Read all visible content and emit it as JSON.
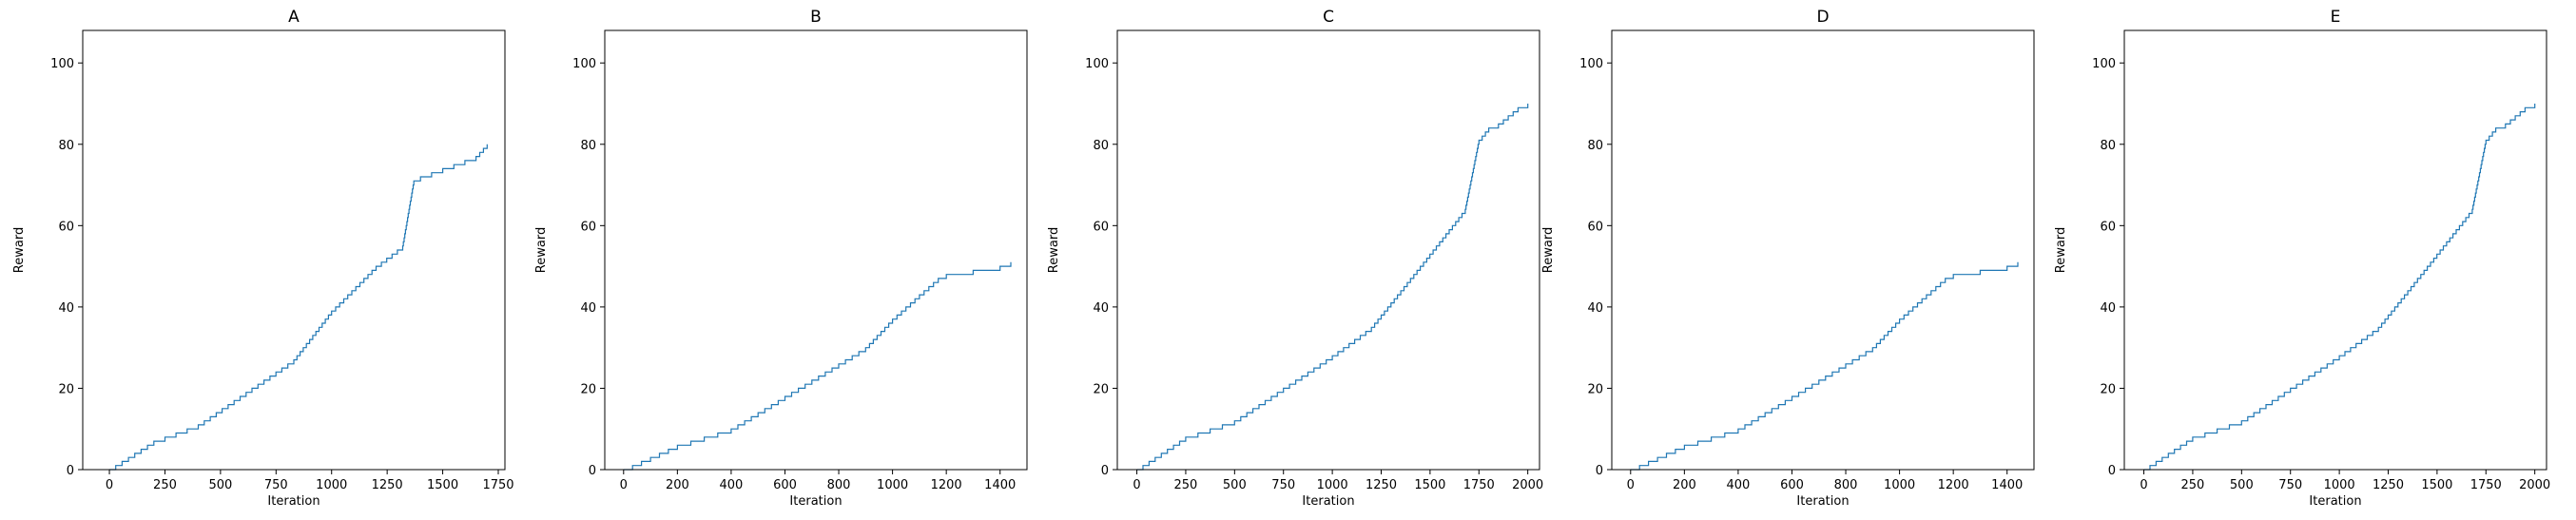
{
  "colors": {
    "series": "#1f77b4",
    "axes": "#000000",
    "background": "#ffffff"
  },
  "chart_data": [
    {
      "type": "line",
      "title": "A",
      "xlabel": "Iteration",
      "ylabel": "Reward",
      "xlim": [
        -120,
        1780
      ],
      "ylim": [
        0,
        108
      ],
      "xticks": [
        0,
        250,
        500,
        750,
        1000,
        1250,
        1500,
        1750
      ],
      "yticks": [
        0,
        20,
        40,
        60,
        80,
        100
      ],
      "grid": false,
      "step": true,
      "series": [
        {
          "name": "reward",
          "x": [
            0,
            200,
            400,
            830,
            1000,
            1200,
            1320,
            1370,
            1400,
            1500,
            1550,
            1650,
            1700
          ],
          "y": [
            0,
            7,
            11,
            27,
            39,
            50,
            55,
            71,
            72,
            74,
            75,
            77,
            80
          ]
        }
      ]
    },
    {
      "type": "line",
      "title": "B",
      "xlabel": "Iteration",
      "ylabel": "Reward",
      "xlim": [
        -70,
        1500
      ],
      "ylim": [
        0,
        108
      ],
      "xticks": [
        0,
        200,
        400,
        600,
        800,
        1000,
        1200,
        1400
      ],
      "yticks": [
        0,
        20,
        40,
        60,
        80,
        100
      ],
      "grid": false,
      "step": true,
      "series": [
        {
          "name": "reward",
          "x": [
            0,
            200,
            400,
            600,
            800,
            900,
            1000,
            1100,
            1170,
            1200,
            1300,
            1400,
            1440
          ],
          "y": [
            0,
            6,
            10,
            18,
            26,
            30,
            37,
            43,
            47,
            48,
            49,
            50,
            51
          ]
        }
      ]
    },
    {
      "type": "line",
      "title": "C",
      "xlabel": "Iteration",
      "ylabel": "Reward",
      "xlim": [
        -100,
        2060
      ],
      "ylim": [
        0,
        108
      ],
      "xticks": [
        0,
        250,
        500,
        750,
        1000,
        1250,
        1500,
        1750,
        2000
      ],
      "yticks": [
        0,
        20,
        40,
        60,
        80,
        100
      ],
      "grid": false,
      "step": true,
      "series": [
        {
          "name": "reward",
          "x": [
            0,
            250,
            500,
            750,
            1000,
            1200,
            1450,
            1680,
            1750,
            1800,
            1850,
            1900,
            1950,
            2000
          ],
          "y": [
            0,
            8,
            12,
            20,
            28,
            35,
            50,
            64,
            81,
            84,
            85,
            87,
            89,
            90
          ]
        }
      ]
    },
    {
      "type": "line",
      "title": "D",
      "xlabel": "Iteration",
      "ylabel": "Reward",
      "xlim": [
        -70,
        1500
      ],
      "ylim": [
        0,
        108
      ],
      "xticks": [
        0,
        200,
        400,
        600,
        800,
        1000,
        1200,
        1400
      ],
      "yticks": [
        0,
        20,
        40,
        60,
        80,
        100
      ],
      "grid": false,
      "step": true,
      "series": [
        {
          "name": "reward",
          "x": [
            0,
            200,
            400,
            600,
            800,
            900,
            1000,
            1100,
            1170,
            1200,
            1300,
            1400,
            1440
          ],
          "y": [
            0,
            6,
            10,
            18,
            26,
            30,
            37,
            43,
            47,
            48,
            49,
            50,
            51
          ]
        }
      ]
    },
    {
      "type": "line",
      "title": "E",
      "xlabel": "Iteration",
      "ylabel": "Reward",
      "xlim": [
        -100,
        2060
      ],
      "ylim": [
        0,
        108
      ],
      "xticks": [
        0,
        250,
        500,
        750,
        1000,
        1250,
        1500,
        1750,
        2000
      ],
      "yticks": [
        0,
        20,
        40,
        60,
        80,
        100
      ],
      "grid": false,
      "step": true,
      "series": [
        {
          "name": "reward",
          "x": [
            0,
            250,
            500,
            750,
            1000,
            1200,
            1450,
            1680,
            1750,
            1800,
            1850,
            1900,
            1950,
            2000
          ],
          "y": [
            0,
            8,
            12,
            20,
            28,
            35,
            50,
            64,
            81,
            84,
            85,
            87,
            89,
            90
          ]
        }
      ]
    }
  ]
}
